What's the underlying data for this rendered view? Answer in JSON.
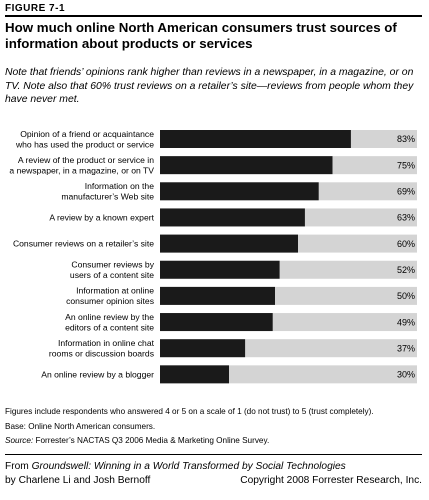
{
  "figure_label": "FIGURE 7-1",
  "title": "How much online North American consumers trust sources of information about products or services",
  "note": "Note that friends’ opinions rank higher than reviews in a newspaper, in a magazine, or on TV. Note also that 60% trust reviews on a retailer’s site—reviews from people whom they have never met.",
  "chart_data": {
    "type": "bar",
    "orientation": "horizontal",
    "categories": [
      [
        "Opinion of a friend or acquaintance",
        "who has used the product or service"
      ],
      [
        "A review of the product or service in",
        "a newspaper, in a magazine, or on TV"
      ],
      [
        "Information on the",
        "manufacturer’s Web site"
      ],
      [
        "A review by a known expert"
      ],
      [
        "Consumer reviews on a retailer’s site"
      ],
      [
        "Consumer reviews by",
        "users of a content site"
      ],
      [
        "Information at online",
        "consumer opinion sites"
      ],
      [
        "An online review by the",
        "editors of a content site"
      ],
      [
        "Information in online chat",
        "rooms or discussion boards"
      ],
      [
        "An online review by a blogger"
      ]
    ],
    "values": [
      83,
      75,
      69,
      63,
      60,
      52,
      50,
      49,
      37,
      30
    ],
    "value_labels": [
      "83%",
      "75%",
      "69%",
      "63%",
      "60%",
      "52%",
      "50%",
      "49%",
      "37%",
      "30%"
    ],
    "xlim": [
      0,
      100
    ],
    "bar_color": "#1a1a1a",
    "track_color": "#d4d4d4"
  },
  "footnotes": {
    "respondents": "Figures include respondents who answered 4 or 5 on a scale of 1 (do not trust) to 5 (trust completely).",
    "base": "Base: Online North American consumers.",
    "source_label": "Source:",
    "source_text": "Forrester’s NACTAS Q3 2006 Media & Marketing Online Survey."
  },
  "credit": {
    "prefix": "From ",
    "book": "Groundswell: Winning in a World Transformed by Social Technologies",
    "authors": "by Charlene Li and Josh Bernoff",
    "copyright": "Copyright 2008 Forrester Research, Inc."
  }
}
